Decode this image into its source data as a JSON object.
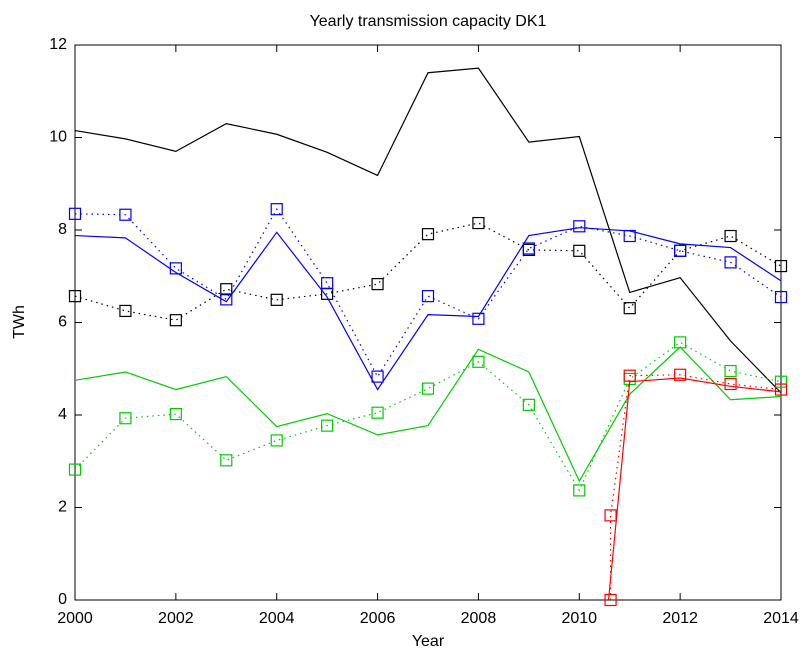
{
  "chart_data": {
    "type": "line",
    "title": "Yearly transmission capacity DK1",
    "xlabel": "Year",
    "ylabel": "TWh",
    "x": [
      2000,
      2001,
      2002,
      2003,
      2004,
      2005,
      2006,
      2007,
      2008,
      2009,
      2010,
      2011,
      2012,
      2013,
      2014
    ],
    "xlim": [
      2000,
      2014
    ],
    "xticks": [
      2000,
      2002,
      2004,
      2006,
      2008,
      2010,
      2012,
      2014
    ],
    "ylim": [
      0,
      12
    ],
    "yticks": [
      0,
      2,
      4,
      6,
      8,
      10,
      12
    ],
    "series": [
      {
        "color": "#000000",
        "style": "solid",
        "values": [
          10.15,
          9.97,
          9.7,
          10.3,
          10.07,
          9.68,
          9.18,
          11.4,
          11.5,
          9.9,
          10.02,
          6.65,
          6.97,
          5.6,
          4.48
        ]
      },
      {
        "color": "#000000",
        "style": "dotted",
        "marker": "square",
        "values": [
          6.57,
          6.25,
          6.05,
          6.72,
          6.49,
          6.62,
          6.83,
          7.91,
          8.15,
          7.57,
          7.55,
          6.31,
          7.55,
          7.87,
          7.22
        ]
      },
      {
        "color": "#0000ff",
        "style": "solid",
        "values": [
          7.88,
          7.83,
          7.08,
          6.45,
          7.95,
          6.55,
          4.55,
          6.17,
          6.13,
          7.88,
          8.05,
          7.98,
          7.7,
          7.62,
          6.9
        ]
      },
      {
        "color": "#0000ff",
        "style": "dotted",
        "marker": "square",
        "values": [
          8.35,
          8.33,
          7.17,
          6.5,
          8.45,
          6.85,
          4.83,
          6.57,
          6.08,
          7.6,
          8.08,
          7.87,
          7.55,
          7.3,
          6.55
        ]
      },
      {
        "color": "#00cc00",
        "style": "solid",
        "values": [
          4.75,
          4.93,
          4.55,
          4.83,
          3.75,
          4.03,
          3.57,
          3.77,
          5.42,
          4.93,
          2.57,
          4.45,
          5.47,
          4.33,
          4.4
        ]
      },
      {
        "color": "#00cc00",
        "style": "dotted",
        "marker": "square",
        "values": [
          2.82,
          3.93,
          4.02,
          3.02,
          3.45,
          3.77,
          4.05,
          4.57,
          5.15,
          4.22,
          2.37,
          4.78,
          5.57,
          4.95,
          4.72
        ]
      },
      {
        "color": "#ff0000",
        "style": "solid",
        "x": [
          2010.58,
          2011,
          2012,
          2013,
          2014
        ],
        "values": [
          0,
          4.72,
          4.8,
          4.62,
          4.5
        ]
      },
      {
        "color": "#ff0000",
        "style": "dotted",
        "marker": "square",
        "x": [
          2010.62,
          2010.62,
          2011,
          2012,
          2013,
          2014
        ],
        "values": [
          0,
          1.83,
          4.85,
          4.87,
          4.67,
          4.55
        ]
      }
    ]
  }
}
